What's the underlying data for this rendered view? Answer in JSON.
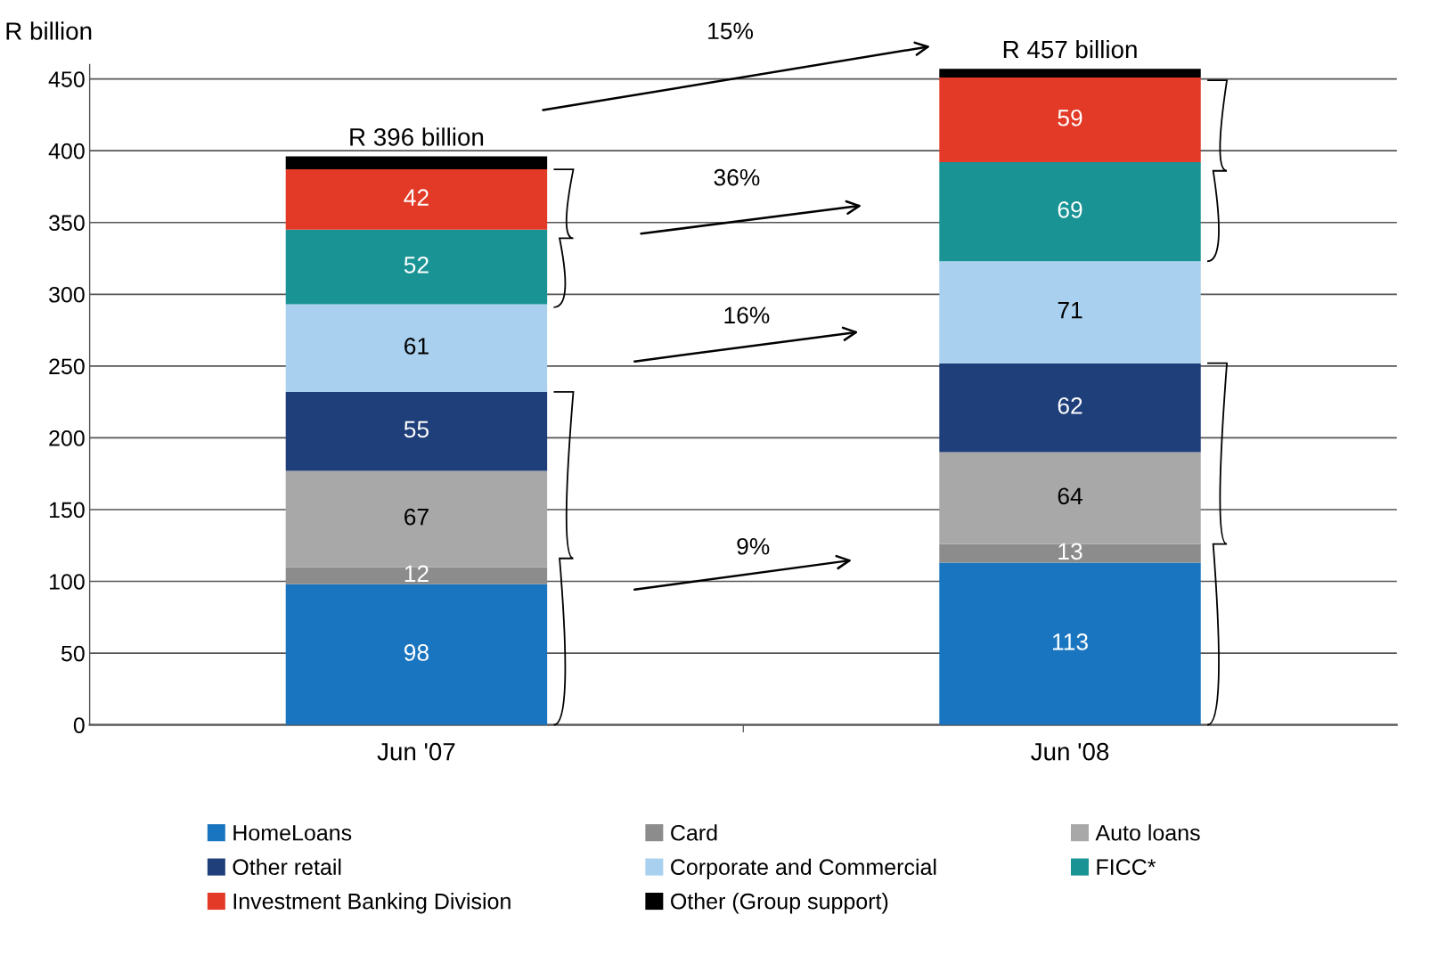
{
  "chart_data": {
    "type": "bar",
    "stacked": true,
    "ylabel": "R billion",
    "categories": [
      "Jun '07",
      "Jun '08"
    ],
    "series": [
      {
        "name": "HomeLoans",
        "color": "#1a75c0",
        "values": [
          98,
          113
        ],
        "value_labels": [
          "98",
          "113"
        ]
      },
      {
        "name": "Card",
        "color": "#8c8c8c",
        "values": [
          12,
          13
        ],
        "value_labels": [
          "12",
          "13"
        ]
      },
      {
        "name": "Auto loans",
        "color": "#a8a8a8",
        "values": [
          67,
          64
        ],
        "value_labels": [
          "67",
          "64"
        ]
      },
      {
        "name": "Other retail",
        "color": "#1f3f7a",
        "values": [
          55,
          62
        ],
        "value_labels": [
          "55",
          "62"
        ]
      },
      {
        "name": "Corporate and Commercial",
        "color": "#a9d0ee",
        "values": [
          61,
          71
        ],
        "value_labels": [
          "61",
          "71"
        ]
      },
      {
        "name": "FICC*",
        "color": "#1a9395",
        "values": [
          52,
          69
        ],
        "value_labels": [
          "52",
          "69"
        ]
      },
      {
        "name": "Investment Banking Division",
        "color": "#e23a26",
        "values": [
          42,
          59
        ],
        "value_labels": [
          "42",
          "59"
        ]
      },
      {
        "name": "Other (Group support)",
        "color": "#000000",
        "values": [
          9,
          6
        ],
        "value_labels": [
          null,
          null
        ]
      }
    ],
    "totals": [
      "R 396 billion",
      "R 457 billion"
    ],
    "annotations": [
      "15%",
      "36%",
      "16%",
      "9%"
    ],
    "ylim": [
      0,
      460
    ],
    "yticks": [
      0,
      50,
      100,
      150,
      200,
      250,
      300,
      350,
      400,
      450
    ],
    "grid": "y",
    "legend": "bottom"
  }
}
